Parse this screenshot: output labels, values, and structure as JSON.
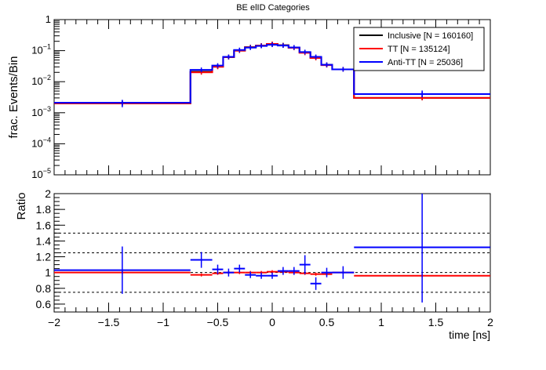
{
  "title": "BE elID Categories",
  "chart_data": [
    {
      "type": "line",
      "panel": "top",
      "ylabel": "frac. Events/Bin",
      "y_scale": "log",
      "ylim": [
        1e-05,
        1
      ],
      "xlim": [
        -2,
        2
      ],
      "bin_edges": [
        -2,
        -0.75,
        -0.55,
        -0.45,
        -0.35,
        -0.25,
        -0.15,
        -0.05,
        0.05,
        0.15,
        0.25,
        0.35,
        0.45,
        0.55,
        0.75,
        2
      ],
      "y_tick_labels": [
        "10^-5",
        "10^-4",
        "10^-3",
        "10^-2",
        "10^-1",
        "1"
      ],
      "series": [
        {
          "name": "Inclusive [N = 160160]",
          "color": "#000000",
          "values": [
            0.002,
            0.021,
            0.031,
            0.062,
            0.1,
            0.13,
            0.145,
            0.16,
            0.15,
            0.125,
            0.088,
            0.06,
            0.035,
            0.025,
            0.003
          ]
        },
        {
          "name": "TT [N = 135124]",
          "color": "#ff0000",
          "values": [
            0.002,
            0.02,
            0.03,
            0.062,
            0.1,
            0.128,
            0.146,
            0.165,
            0.148,
            0.123,
            0.085,
            0.058,
            0.034,
            0.025,
            0.003
          ]
        },
        {
          "name": "Anti-TT [N = 25036]",
          "color": "#0000ff",
          "values": [
            0.0021,
            0.024,
            0.033,
            0.063,
            0.105,
            0.125,
            0.142,
            0.155,
            0.146,
            0.127,
            0.09,
            0.063,
            0.035,
            0.025,
            0.004
          ]
        }
      ],
      "errors": [
        {
          "series": "Anti-TT [N = 25036]",
          "x": -1.375,
          "lo": 0.0015,
          "hi": 0.0026
        },
        {
          "series": "Anti-TT [N = 25036]",
          "x": 1.375,
          "lo": 0.0031,
          "hi": 0.0052
        }
      ]
    },
    {
      "type": "line",
      "panel": "bottom",
      "xlabel": "time [ns]",
      "ylabel": "Ratio",
      "xlim": [
        -2,
        2
      ],
      "ylim": [
        0.5,
        2
      ],
      "x_ticks": [
        -2,
        -1.5,
        -1,
        -0.5,
        0,
        0.5,
        1,
        1.5,
        2
      ],
      "x_tick_labels": [
        "−2",
        "−1.5",
        "−1",
        "−0.5",
        "0",
        "0.5",
        "1",
        "1.5",
        "2"
      ],
      "y_ticks": [
        0.6,
        0.8,
        1,
        1.2,
        1.4,
        1.6,
        1.8,
        2
      ],
      "y_tick_labels": [
        "0.6",
        "0.8",
        "1",
        "1.2",
        "1.4",
        "1.6",
        "1.8",
        "2"
      ],
      "reference_lines": [
        0.75,
        1,
        1.25,
        1.5
      ],
      "bin_edges": [
        -2,
        -0.75,
        -0.55,
        -0.45,
        -0.35,
        -0.25,
        -0.15,
        -0.05,
        0.05,
        0.15,
        0.25,
        0.35,
        0.45,
        0.55,
        0.75,
        2
      ],
      "series": [
        {
          "name": "TT [N = 135124]",
          "color": "#ff0000",
          "values": [
            1.0,
            0.97,
            0.99,
            1.0,
            1.0,
            1.0,
            1.0,
            1.01,
            1.01,
            1.0,
            0.99,
            0.98,
            0.98,
            1.0,
            0.96
          ]
        },
        {
          "name": "Anti-TT [N = 25036]",
          "color": "#0000ff",
          "values": [
            1.03,
            1.16,
            1.04,
            1.0,
            1.05,
            0.97,
            0.96,
            0.96,
            1.02,
            1.02,
            1.1,
            0.86,
            1.0,
            1.0,
            1.32
          ],
          "err": [
            0.3,
            0.1,
            0.06,
            0.05,
            0.05,
            0.04,
            0.04,
            0.04,
            0.05,
            0.05,
            0.12,
            0.08,
            0.06,
            0.08,
            0.7
          ]
        }
      ]
    }
  ]
}
